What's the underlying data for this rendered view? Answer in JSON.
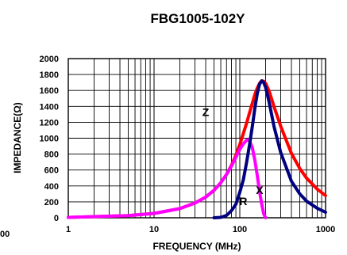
{
  "chart_data": {
    "type": "line",
    "title": "FBG1005-102Y",
    "xlabel": "FREQUENCY (MHz)",
    "ylabel": "IMPEDANCE(Ω)",
    "x_scale": "log",
    "xlim": [
      1,
      1000
    ],
    "ylim": [
      0,
      2000
    ],
    "grid": true,
    "x_ticks": [
      "1",
      "10",
      "100",
      "1000"
    ],
    "y_ticks": [
      "0",
      "200",
      "400",
      "600",
      "800",
      "1000",
      "1200",
      "1400",
      "1600",
      "1800",
      "2000"
    ],
    "edge_text": "00",
    "series": [
      {
        "name": "Z",
        "color": "#ff0000",
        "x": [
          1,
          5,
          10,
          20,
          30,
          40,
          50,
          60,
          70,
          80,
          90,
          100,
          110,
          120,
          130,
          140,
          150,
          160,
          170,
          180,
          190,
          200,
          220,
          250,
          300,
          400,
          500,
          600,
          800,
          1000
        ],
        "y": [
          5,
          28,
          55,
          115,
          185,
          260,
          345,
          440,
          545,
          660,
          785,
          920,
          1060,
          1190,
          1320,
          1440,
          1550,
          1630,
          1690,
          1720,
          1715,
          1690,
          1590,
          1400,
          1150,
          810,
          620,
          500,
          360,
          280
        ]
      },
      {
        "name": "R",
        "color": "#ff00ff",
        "x": [
          1,
          5,
          10,
          20,
          30,
          40,
          50,
          60,
          70,
          80,
          90,
          100,
          110,
          120,
          125,
          130,
          140,
          150,
          160,
          170,
          180,
          190,
          200
        ],
        "y": [
          5,
          28,
          55,
          115,
          185,
          260,
          345,
          440,
          545,
          650,
          760,
          860,
          930,
          975,
          980,
          965,
          880,
          720,
          530,
          330,
          170,
          50,
          0
        ]
      },
      {
        "name": "X",
        "color": "#000080",
        "x": [
          50,
          60,
          70,
          80,
          90,
          100,
          110,
          120,
          130,
          140,
          150,
          160,
          170,
          180,
          190,
          200,
          220,
          250,
          300,
          400,
          500,
          600,
          800,
          1000
        ],
        "y": [
          0,
          5,
          30,
          90,
          170,
          320,
          480,
          700,
          920,
          1150,
          1380,
          1560,
          1680,
          1720,
          1700,
          1640,
          1450,
          1150,
          820,
          460,
          300,
          210,
          120,
          70
        ]
      }
    ],
    "annotations": [
      "Z",
      "R",
      "X"
    ]
  }
}
